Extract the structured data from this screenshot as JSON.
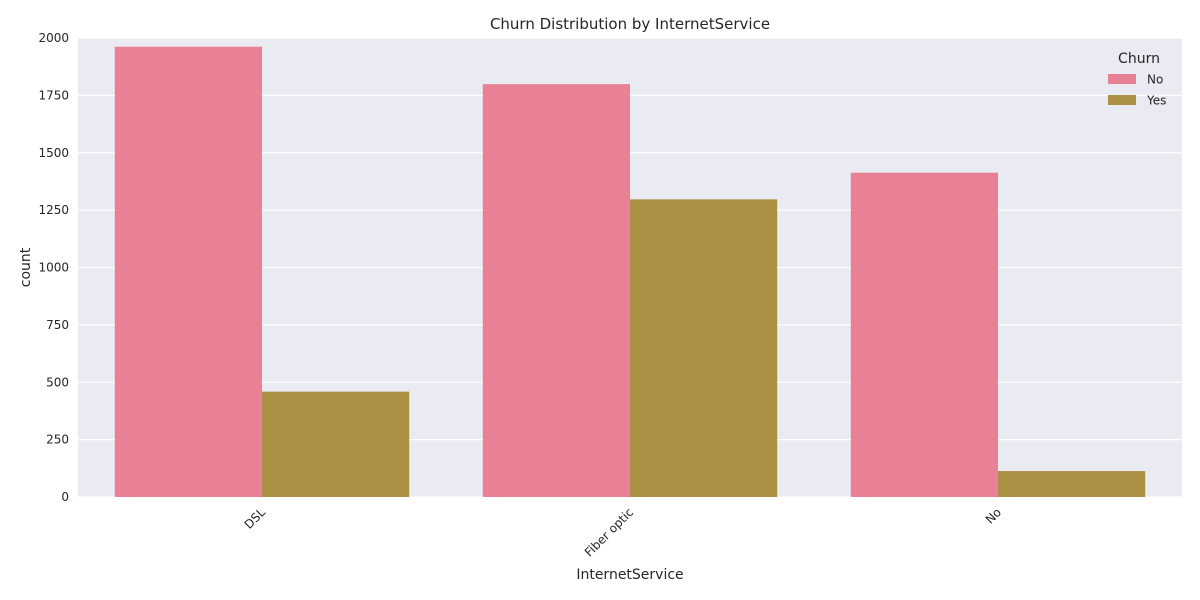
{
  "colors": {
    "background": "#eaeaf2",
    "grid": "#ffffff",
    "text": "#262626"
  },
  "chart_data": {
    "type": "bar",
    "title": "Churn Distribution by InternetService",
    "xlabel": "InternetService",
    "ylabel": "count",
    "categories": [
      "DSL",
      "Fiber optic",
      "No"
    ],
    "series": [
      {
        "name": "No",
        "color": "#e88193",
        "values": [
          1962,
          1799,
          1413
        ]
      },
      {
        "name": "Yes",
        "color": "#ab8f43",
        "values": [
          459,
          1297,
          113
        ]
      }
    ],
    "ylim": [
      0,
      2000
    ],
    "yticks": [
      0,
      250,
      500,
      750,
      1000,
      1250,
      1500,
      1750,
      2000
    ],
    "grid": true,
    "legend": {
      "title": "Churn",
      "position": "top-right"
    }
  }
}
